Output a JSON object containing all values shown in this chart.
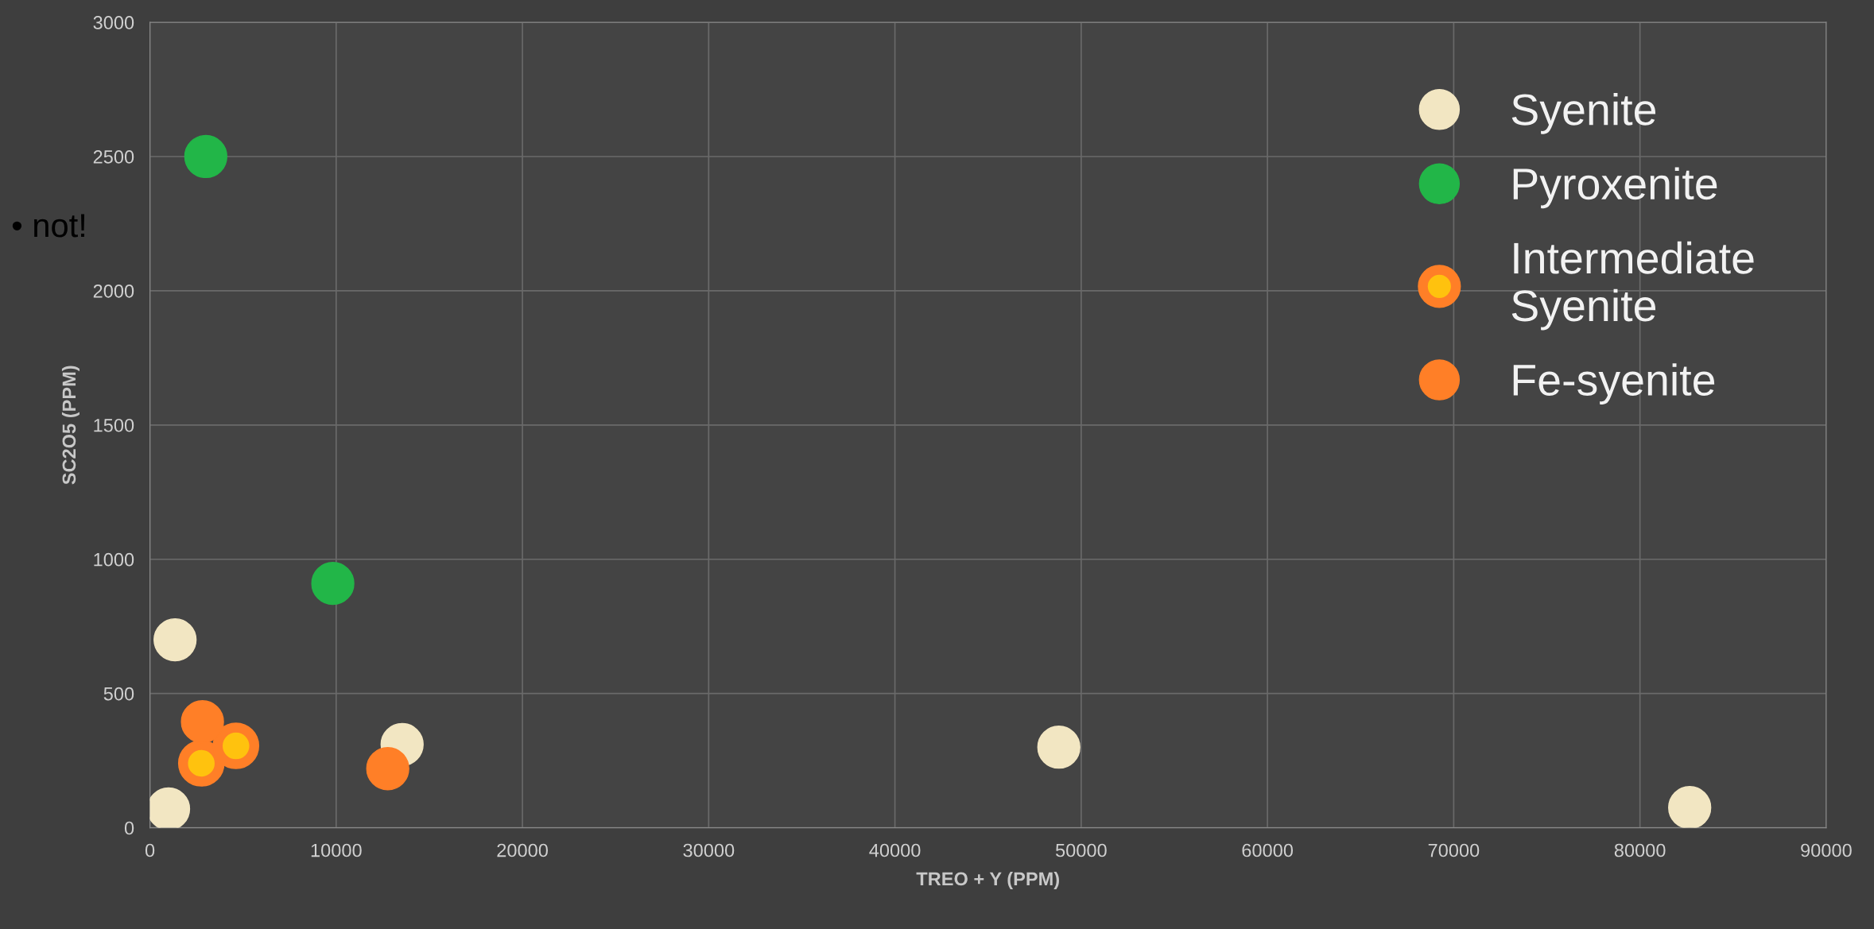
{
  "chart_data": {
    "type": "scatter",
    "xlabel": "TREO + Y (PPM)",
    "ylabel": "SC2O5 (PPM)",
    "annotations": [
      "• not!"
    ],
    "series": [
      {
        "name": "Syenite",
        "color": "#f2e6c2",
        "x": [
          1350,
          1000,
          13540,
          48800,
          82670
        ],
        "values": [
          700,
          70,
          310,
          300,
          75
        ]
      },
      {
        "name": "Pyroxenite",
        "color": "#22b648",
        "x": [
          3000,
          9820
        ],
        "values": [
          2500,
          910
        ]
      },
      {
        "name": "Intermediate Syenite",
        "color": "#ffc20e",
        "x": [
          2760,
          4620
        ],
        "values": [
          240,
          305
        ]
      },
      {
        "name": "Fe-syenite",
        "color": "#ff7f27",
        "x": [
          2820,
          12770
        ],
        "values": [
          395,
          220
        ]
      }
    ],
    "xlim": [
      0,
      90000
    ],
    "xticks": [
      0,
      10000,
      20000,
      30000,
      40000,
      50000,
      60000,
      70000,
      80000,
      90000
    ],
    "ylim": [
      0,
      3000
    ],
    "yticks": [
      0,
      500,
      1000,
      1500,
      2000,
      2500,
      3000
    ],
    "grid": true,
    "legend": "top right",
    "marker": "circle"
  }
}
